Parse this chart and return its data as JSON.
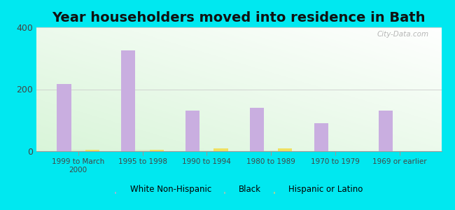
{
  "title": "Year householders moved into residence in Bath",
  "categories": [
    "1999 to March\n2000",
    "1995 to 1998",
    "1990 to 1994",
    "1980 to 1989",
    "1970 to 1979",
    "1969 or earlier"
  ],
  "white_non_hispanic": [
    218,
    325,
    130,
    140,
    90,
    130
  ],
  "black": [
    5,
    5,
    3,
    3,
    0,
    0
  ],
  "hispanic_or_latino": [
    5,
    5,
    8,
    8,
    0,
    0
  ],
  "bar_color_white": "#c9aee0",
  "bar_color_black": "#d8ecc8",
  "bar_color_hispanic": "#f0e060",
  "ylim": [
    0,
    400
  ],
  "yticks": [
    0,
    200,
    400
  ],
  "background_outer": "#00e8f0",
  "title_fontsize": 14,
  "watermark": "City-Data.com",
  "legend_labels": [
    "White Non-Hispanic",
    "Black",
    "Hispanic or Latino"
  ]
}
